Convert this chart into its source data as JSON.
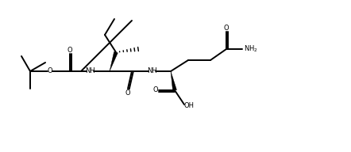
{
  "bg_color": "#ffffff",
  "line_color": "#000000",
  "line_width": 1.4,
  "figsize": [
    4.42,
    1.92
  ],
  "dpi": 100,
  "xlim": [
    0,
    44.2
  ],
  "ylim": [
    0,
    19.2
  ]
}
